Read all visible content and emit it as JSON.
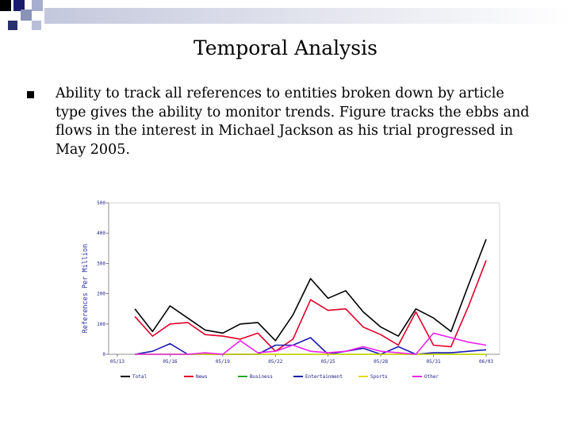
{
  "slide": {
    "title": "Temporal Analysis",
    "bullet_text": "Ability to track all references to entities broken down by article type gives the ability to monitor trends. Figure tracks the ebbs and flows in the interest in Michael Jackson as his trial progressed in May 2005."
  },
  "chart_data": {
    "type": "line",
    "ylabel": "References Per Million",
    "ylim": [
      0,
      500
    ],
    "yticks": [
      0,
      100,
      200,
      300,
      400,
      500
    ],
    "x": [
      "05/13",
      "05/14",
      "05/15",
      "05/16",
      "05/17",
      "05/18",
      "05/19",
      "05/20",
      "05/21",
      "05/22",
      "05/23",
      "05/24",
      "05/25",
      "05/26",
      "05/27",
      "05/28",
      "05/29",
      "05/30",
      "05/31",
      "06/01",
      "06/02",
      "06/03"
    ],
    "xtick_labels": [
      "05/13",
      "05/16",
      "05/19",
      "05/22",
      "05/25",
      "05/28",
      "05/31",
      "06/03"
    ],
    "legend_position": "bottom",
    "series": [
      {
        "name": "Total",
        "color": "#000000",
        "values": [
          null,
          150,
          75,
          160,
          120,
          80,
          70,
          100,
          105,
          45,
          130,
          250,
          185,
          210,
          140,
          90,
          60,
          150,
          120,
          75,
          230,
          380
        ]
      },
      {
        "name": "News",
        "color": "#e0002a",
        "values": [
          null,
          125,
          60,
          100,
          105,
          65,
          60,
          50,
          70,
          10,
          50,
          180,
          145,
          150,
          90,
          65,
          30,
          140,
          30,
          25,
          160,
          310
        ]
      },
      {
        "name": "Business",
        "color": "#22aa22",
        "values": [
          null,
          0,
          0,
          0,
          0,
          0,
          0,
          0,
          0,
          0,
          0,
          0,
          0,
          0,
          0,
          0,
          0,
          0,
          0,
          0,
          0,
          0
        ]
      },
      {
        "name": "Entertainment",
        "color": "#1a1ab0",
        "values": [
          null,
          0,
          10,
          35,
          0,
          0,
          0,
          0,
          0,
          30,
          30,
          55,
          0,
          10,
          20,
          0,
          25,
          0,
          5,
          5,
          10,
          15
        ]
      },
      {
        "name": "Sports",
        "color": "#dddd00",
        "values": [
          null,
          0,
          0,
          0,
          0,
          0,
          0,
          0,
          0,
          0,
          0,
          0,
          0,
          0,
          0,
          0,
          0,
          0,
          0,
          0,
          0,
          0
        ]
      },
      {
        "name": "Other",
        "color": "#ee22ee",
        "values": [
          null,
          0,
          0,
          0,
          0,
          5,
          0,
          45,
          5,
          10,
          30,
          10,
          5,
          10,
          25,
          10,
          5,
          0,
          70,
          55,
          40,
          30
        ]
      }
    ]
  }
}
